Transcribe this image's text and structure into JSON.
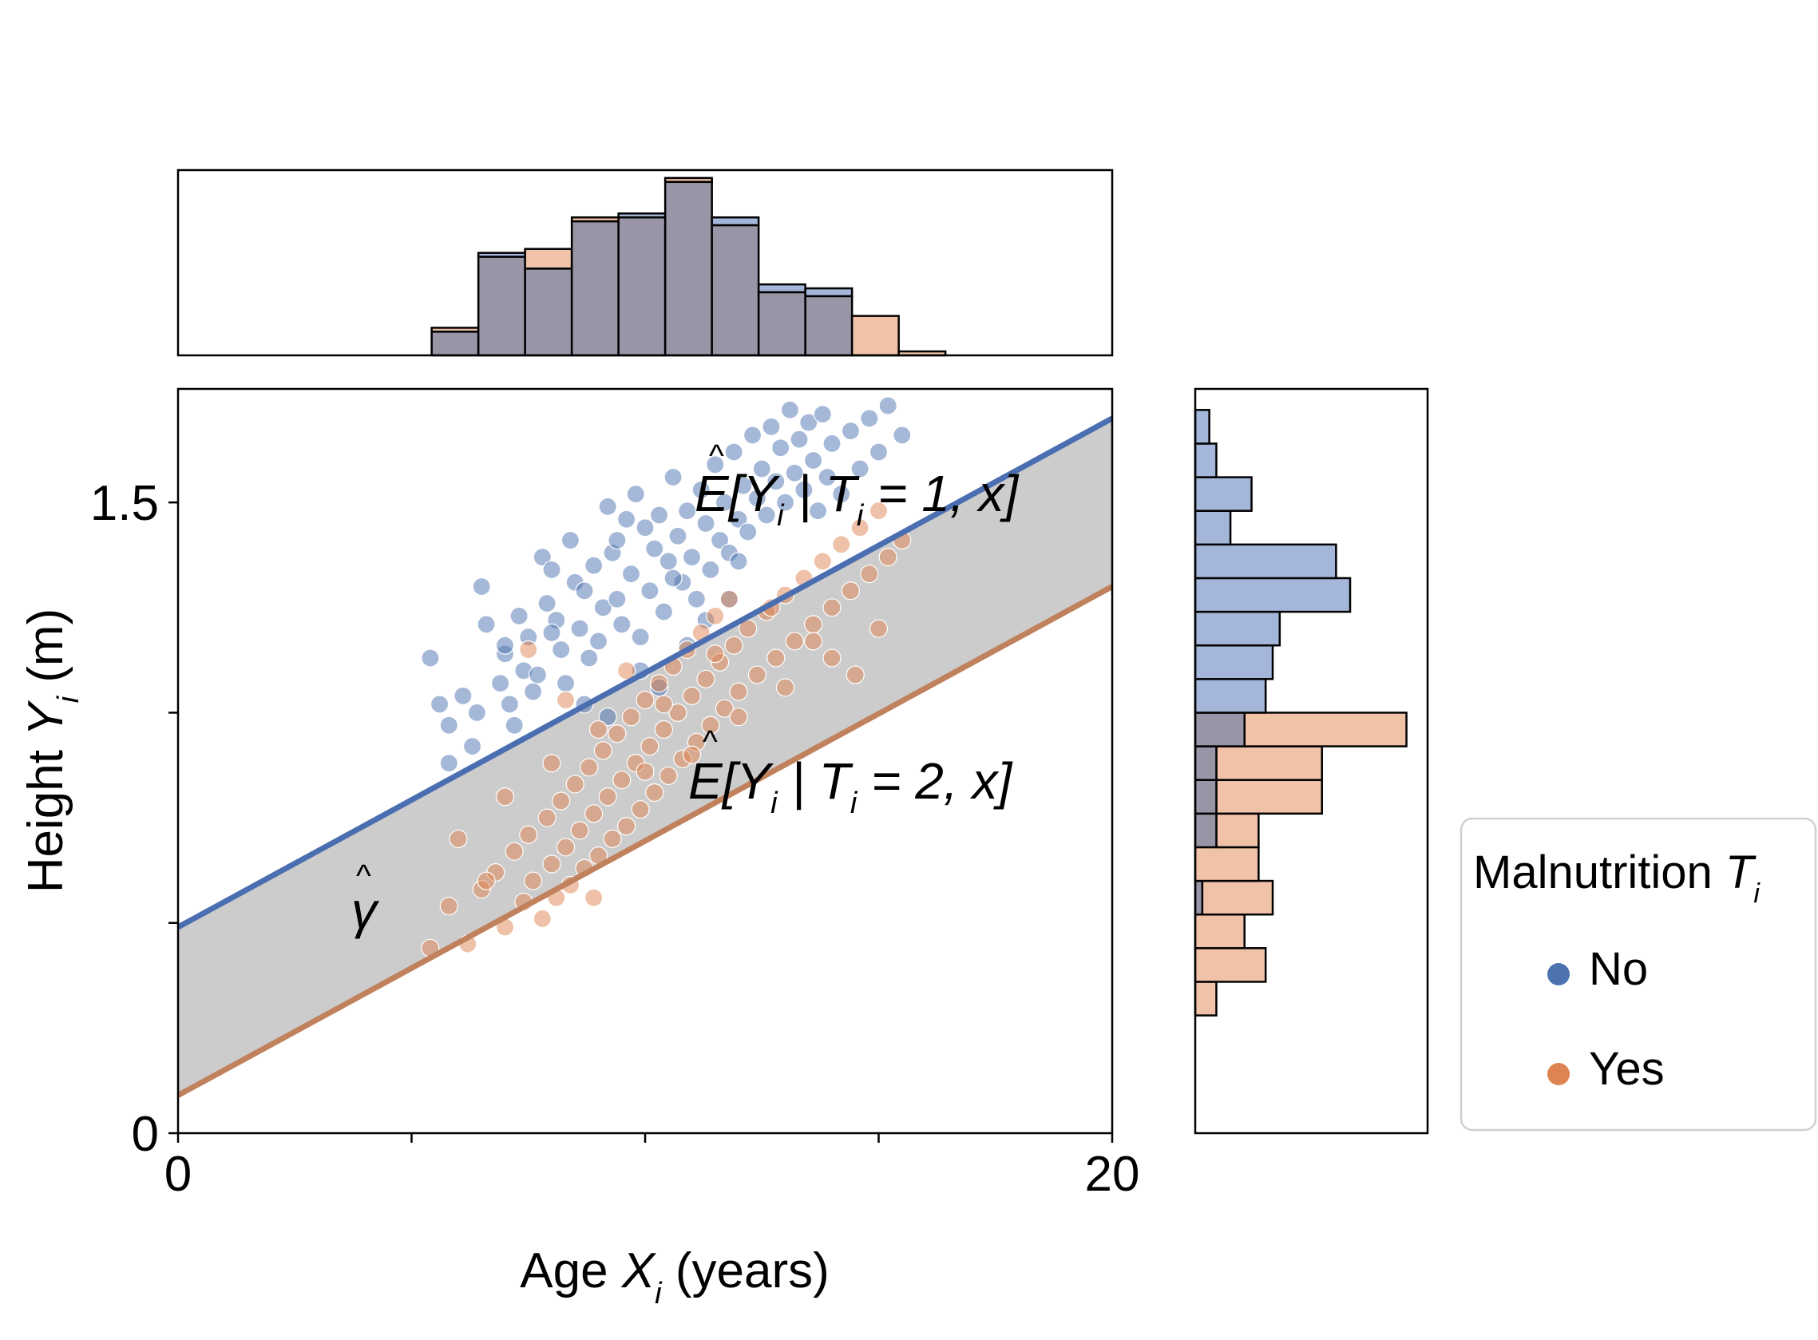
{
  "chart_data": {
    "type": "scatter",
    "title": "",
    "xlabel": {
      "pre": "Age ",
      "var": "X",
      "sub": "i",
      "post": " (years)"
    },
    "ylabel": {
      "pre": "Height ",
      "var": "Y",
      "sub": "i",
      "post": " (m)"
    },
    "xlim": [
      0,
      20
    ],
    "ylim": [
      0,
      1.77
    ],
    "xticks": [
      0,
      5,
      10,
      15,
      20
    ],
    "xtick_labels": [
      "0",
      "",
      "",
      "",
      "20"
    ],
    "yticks": [
      0,
      0.5,
      1.0,
      1.5
    ],
    "ytick_labels": [
      "0",
      "",
      "",
      "1.5"
    ],
    "grid": false,
    "band_label": "γ",
    "band_color": "#cccccc",
    "series": [
      {
        "name": "No",
        "color": "#4c72b0",
        "line": {
          "intercept": 0.49,
          "slope": 0.0605
        },
        "line_label": "E[Y | T = 1, x]",
        "points": [
          [
            5.4,
            1.13
          ],
          [
            5.6,
            1.02
          ],
          [
            5.8,
            0.97
          ],
          [
            6.1,
            1.04
          ],
          [
            6.4,
            1.0
          ],
          [
            6.5,
            1.3
          ],
          [
            6.6,
            1.21
          ],
          [
            6.9,
            1.07
          ],
          [
            7.0,
            1.14
          ],
          [
            7.1,
            1.02
          ],
          [
            7.2,
            0.97
          ],
          [
            7.3,
            1.23
          ],
          [
            7.4,
            1.1
          ],
          [
            7.5,
            1.18
          ],
          [
            7.6,
            1.05
          ],
          [
            7.7,
            1.09
          ],
          [
            7.8,
            1.37
          ],
          [
            7.9,
            1.26
          ],
          [
            8.0,
            1.34
          ],
          [
            8.1,
            1.22
          ],
          [
            8.2,
            1.15
          ],
          [
            8.3,
            1.07
          ],
          [
            8.4,
            1.41
          ],
          [
            8.5,
            1.31
          ],
          [
            8.6,
            1.2
          ],
          [
            8.7,
            1.29
          ],
          [
            8.8,
            1.13
          ],
          [
            8.9,
            1.35
          ],
          [
            9.0,
            1.17
          ],
          [
            9.1,
            1.25
          ],
          [
            9.2,
            1.49
          ],
          [
            9.3,
            1.38
          ],
          [
            9.4,
            1.27
          ],
          [
            9.5,
            1.21
          ],
          [
            9.6,
            1.46
          ],
          [
            9.7,
            1.33
          ],
          [
            9.8,
            1.52
          ],
          [
            9.9,
            1.18
          ],
          [
            10.0,
            1.44
          ],
          [
            10.1,
            1.29
          ],
          [
            10.2,
            1.39
          ],
          [
            10.3,
            1.47
          ],
          [
            10.4,
            1.24
          ],
          [
            10.5,
            1.36
          ],
          [
            10.6,
            1.56
          ],
          [
            10.7,
            1.42
          ],
          [
            10.8,
            1.31
          ],
          [
            10.9,
            1.48
          ],
          [
            11.0,
            1.37
          ],
          [
            11.1,
            1.27
          ],
          [
            11.2,
            1.53
          ],
          [
            11.3,
            1.45
          ],
          [
            11.4,
            1.34
          ],
          [
            11.5,
            1.59
          ],
          [
            11.6,
            1.41
          ],
          [
            11.7,
            1.5
          ],
          [
            11.8,
            1.38
          ],
          [
            11.9,
            1.62
          ],
          [
            12.0,
            1.46
          ],
          [
            12.1,
            1.54
          ],
          [
            12.2,
            1.43
          ],
          [
            12.3,
            1.66
          ],
          [
            12.4,
            1.51
          ],
          [
            12.5,
            1.58
          ],
          [
            12.6,
            1.47
          ],
          [
            12.7,
            1.68
          ],
          [
            12.8,
            1.55
          ],
          [
            12.9,
            1.63
          ],
          [
            13.0,
            1.5
          ],
          [
            13.1,
            1.72
          ],
          [
            13.2,
            1.57
          ],
          [
            13.3,
            1.65
          ],
          [
            13.4,
            1.53
          ],
          [
            13.5,
            1.69
          ],
          [
            13.6,
            1.6
          ],
          [
            13.7,
            1.48
          ],
          [
            13.8,
            1.71
          ],
          [
            13.9,
            1.56
          ],
          [
            14.0,
            1.64
          ],
          [
            14.2,
            1.52
          ],
          [
            14.4,
            1.67
          ],
          [
            14.6,
            1.58
          ],
          [
            14.8,
            1.7
          ],
          [
            15.0,
            1.62
          ],
          [
            15.2,
            1.73
          ],
          [
            15.5,
            1.66
          ],
          [
            8.0,
            1.19
          ],
          [
            9.4,
            1.41
          ],
          [
            10.6,
            1.32
          ],
          [
            11.3,
            1.22
          ],
          [
            12.0,
            1.36
          ],
          [
            7.0,
            1.16
          ],
          [
            8.7,
            1.02
          ],
          [
            9.9,
            1.1
          ],
          [
            10.9,
            1.16
          ],
          [
            6.3,
            0.92
          ],
          [
            5.8,
            0.88
          ],
          [
            9.2,
            0.99
          ],
          [
            10.3,
            1.06
          ],
          [
            11.8,
            1.27
          ]
        ]
      },
      {
        "name": "Yes",
        "color": "#dd8452",
        "line": {
          "intercept": 0.09,
          "slope": 0.0605
        },
        "line_label": "E[Y | T = 2, x]",
        "points": [
          [
            5.4,
            0.44
          ],
          [
            5.8,
            0.54
          ],
          [
            6.2,
            0.45
          ],
          [
            6.5,
            0.58
          ],
          [
            6.8,
            0.62
          ],
          [
            7.0,
            0.49
          ],
          [
            7.2,
            0.67
          ],
          [
            7.4,
            0.55
          ],
          [
            7.5,
            0.71
          ],
          [
            7.6,
            0.6
          ],
          [
            7.8,
            0.51
          ],
          [
            7.9,
            0.75
          ],
          [
            8.0,
            0.64
          ],
          [
            8.1,
            0.56
          ],
          [
            8.2,
            0.79
          ],
          [
            8.3,
            0.68
          ],
          [
            8.4,
            0.59
          ],
          [
            8.5,
            0.83
          ],
          [
            8.6,
            0.72
          ],
          [
            8.7,
            0.63
          ],
          [
            8.8,
            0.87
          ],
          [
            8.9,
            0.76
          ],
          [
            9.0,
            0.66
          ],
          [
            9.1,
            0.91
          ],
          [
            9.2,
            0.8
          ],
          [
            9.3,
            0.7
          ],
          [
            9.4,
            0.95
          ],
          [
            9.5,
            0.84
          ],
          [
            9.6,
            0.73
          ],
          [
            9.7,
            0.99
          ],
          [
            9.8,
            0.88
          ],
          [
            9.9,
            0.77
          ],
          [
            10.0,
            1.03
          ],
          [
            10.1,
            0.92
          ],
          [
            10.2,
            0.81
          ],
          [
            10.3,
            1.07
          ],
          [
            10.4,
            0.96
          ],
          [
            10.5,
            0.85
          ],
          [
            10.6,
            1.11
          ],
          [
            10.7,
            1.0
          ],
          [
            10.8,
            0.89
          ],
          [
            10.9,
            1.15
          ],
          [
            11.0,
            1.04
          ],
          [
            11.1,
            0.93
          ],
          [
            11.2,
            1.19
          ],
          [
            11.3,
            1.08
          ],
          [
            11.4,
            0.97
          ],
          [
            11.5,
            1.23
          ],
          [
            11.6,
            1.12
          ],
          [
            11.7,
            1.01
          ],
          [
            11.8,
            1.27
          ],
          [
            11.9,
            1.16
          ],
          [
            12.0,
            1.05
          ],
          [
            12.2,
            1.2
          ],
          [
            12.4,
            1.09
          ],
          [
            12.6,
            1.24
          ],
          [
            12.8,
            1.13
          ],
          [
            13.0,
            1.28
          ],
          [
            13.2,
            1.17
          ],
          [
            13.4,
            1.32
          ],
          [
            13.6,
            1.21
          ],
          [
            13.8,
            1.36
          ],
          [
            14.0,
            1.25
          ],
          [
            14.2,
            1.4
          ],
          [
            14.4,
            1.29
          ],
          [
            14.6,
            1.44
          ],
          [
            14.8,
            1.33
          ],
          [
            15.0,
            1.48
          ],
          [
            15.2,
            1.37
          ],
          [
            15.5,
            1.41
          ],
          [
            6.0,
            0.7
          ],
          [
            7.0,
            0.8
          ],
          [
            8.0,
            0.88
          ],
          [
            9.0,
            0.96
          ],
          [
            10.0,
            0.86
          ],
          [
            11.0,
            0.9
          ],
          [
            12.0,
            0.99
          ],
          [
            13.0,
            1.06
          ],
          [
            14.0,
            1.13
          ],
          [
            15.0,
            1.2
          ],
          [
            7.5,
            1.15
          ],
          [
            8.3,
            1.03
          ],
          [
            9.6,
            1.1
          ],
          [
            10.4,
            1.02
          ],
          [
            11.5,
            1.14
          ],
          [
            12.7,
            1.25
          ],
          [
            13.6,
            1.17
          ],
          [
            14.5,
            1.09
          ],
          [
            6.6,
            0.6
          ],
          [
            8.9,
            0.56
          ]
        ]
      }
    ],
    "top_histogram": {
      "bin_edges": [
        5.43,
        6.43,
        7.43,
        8.43,
        9.43,
        10.43,
        11.43,
        12.43,
        13.43,
        14.43,
        15.43,
        16.43
      ],
      "No": [
        6,
        26,
        22,
        34,
        36,
        44,
        35,
        18,
        17,
        0,
        0
      ],
      "Yes": [
        7,
        25,
        27,
        35,
        35,
        45,
        33,
        16,
        15,
        10,
        1
      ]
    },
    "right_histogram": {
      "bin_edges": [
        0.28,
        0.36,
        0.44,
        0.52,
        0.6,
        0.68,
        0.76,
        0.84,
        0.92,
        1.0,
        1.08,
        1.16,
        1.24,
        1.32,
        1.4,
        1.48,
        1.56,
        1.64,
        1.72
      ],
      "No": [
        0,
        0,
        0,
        1,
        0,
        3,
        3,
        3,
        7,
        10,
        11,
        12,
        22,
        20,
        5,
        8,
        3,
        2
      ],
      "Yes": [
        3,
        10,
        7,
        11,
        9,
        9,
        18,
        18,
        30,
        0,
        0,
        0,
        0,
        0,
        0,
        0,
        0,
        0
      ]
    },
    "overlap_color": "#9a95a6",
    "legend": {
      "title_pre": "Malnutrition ",
      "title_var": "T",
      "title_sub": "i",
      "placement": "right-outside",
      "entries": [
        "No",
        "Yes"
      ]
    }
  }
}
